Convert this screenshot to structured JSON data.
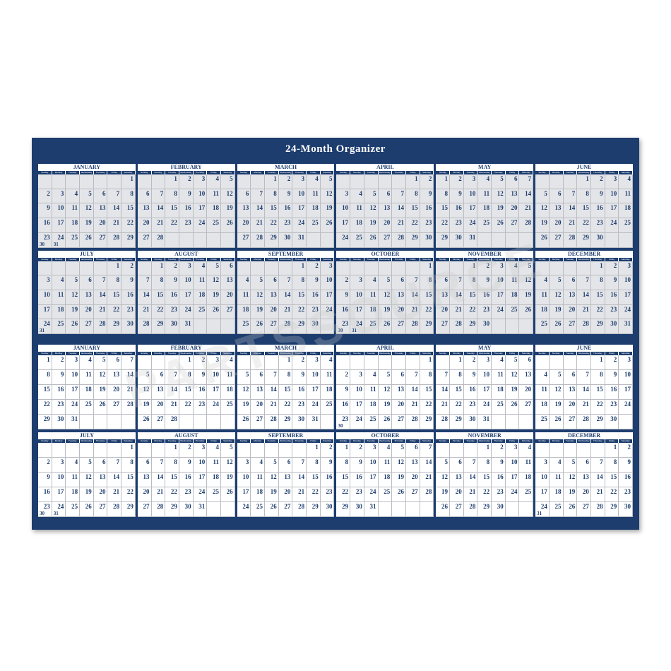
{
  "title": "24-Month Organizer",
  "watermark": "PARTSSOURCE",
  "colors": {
    "frame": "#1d3d6e",
    "year1_cells": "#e4e5e8",
    "year2_cells": "#ffffff"
  },
  "weekdays": [
    "Sunday",
    "Monday",
    "Tuesday",
    "Wednesday",
    "Thursday",
    "Friday",
    "Saturday"
  ],
  "years": [
    {
      "months": [
        {
          "name": "January",
          "start_weekday": 6,
          "days": 31
        },
        {
          "name": "February",
          "start_weekday": 2,
          "days": 28
        },
        {
          "name": "March",
          "start_weekday": 2,
          "days": 31
        },
        {
          "name": "April",
          "start_weekday": 5,
          "days": 30
        },
        {
          "name": "May",
          "start_weekday": 0,
          "days": 31
        },
        {
          "name": "June",
          "start_weekday": 3,
          "days": 30
        },
        {
          "name": "July",
          "start_weekday": 5,
          "days": 31
        },
        {
          "name": "August",
          "start_weekday": 1,
          "days": 31
        },
        {
          "name": "September",
          "start_weekday": 4,
          "days": 30
        },
        {
          "name": "October",
          "start_weekday": 6,
          "days": 31
        },
        {
          "name": "November",
          "start_weekday": 2,
          "days": 30
        },
        {
          "name": "December",
          "start_weekday": 4,
          "days": 31
        }
      ]
    },
    {
      "months": [
        {
          "name": "January",
          "start_weekday": 0,
          "days": 31
        },
        {
          "name": "February",
          "start_weekday": 3,
          "days": 28
        },
        {
          "name": "March",
          "start_weekday": 3,
          "days": 31
        },
        {
          "name": "April",
          "start_weekday": 6,
          "days": 30
        },
        {
          "name": "May",
          "start_weekday": 1,
          "days": 31
        },
        {
          "name": "June",
          "start_weekday": 4,
          "days": 30
        },
        {
          "name": "July",
          "start_weekday": 6,
          "days": 31
        },
        {
          "name": "August",
          "start_weekday": 2,
          "days": 31
        },
        {
          "name": "September",
          "start_weekday": 5,
          "days": 30
        },
        {
          "name": "October",
          "start_weekday": 0,
          "days": 31
        },
        {
          "name": "November",
          "start_weekday": 3,
          "days": 30
        },
        {
          "name": "December",
          "start_weekday": 5,
          "days": 31
        }
      ]
    }
  ]
}
